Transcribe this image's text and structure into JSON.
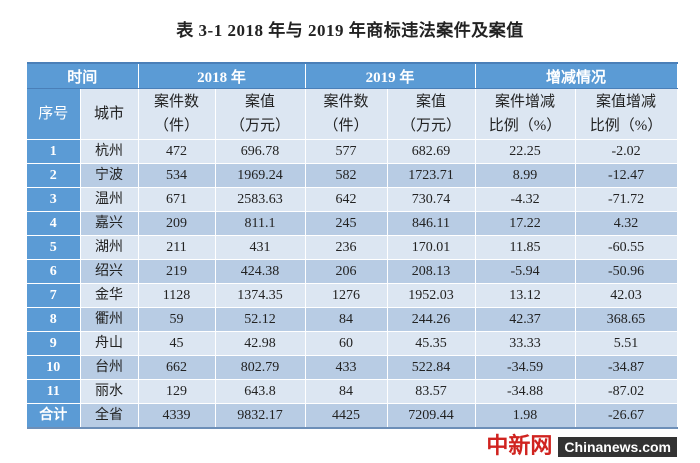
{
  "title": "表 3-1   2018 年与 2019 年商标违法案件及案值",
  "header_row1": [
    "时间",
    "2018 年",
    "2019 年",
    "增减情况"
  ],
  "header_row2": [
    {
      "line1": "序号",
      "line2": ""
    },
    {
      "line1": "城市",
      "line2": ""
    },
    {
      "line1": "案件数",
      "line2": "（件）"
    },
    {
      "line1": "案值",
      "line2": "（万元）"
    },
    {
      "line1": "案件数",
      "line2": "（件）"
    },
    {
      "line1": "案值",
      "line2": "（万元）"
    },
    {
      "line1": "案件增减",
      "line2": "比例（%）"
    },
    {
      "line1": "案值增减",
      "line2": "比例（%）"
    }
  ],
  "rows": [
    [
      "1",
      "杭州",
      "472",
      "696.78",
      "577",
      "682.69",
      "22.25",
      "-2.02"
    ],
    [
      "2",
      "宁波",
      "534",
      "1969.24",
      "582",
      "1723.71",
      "8.99",
      "-12.47"
    ],
    [
      "3",
      "温州",
      "671",
      "2583.63",
      "642",
      "730.74",
      "-4.32",
      "-71.72"
    ],
    [
      "4",
      "嘉兴",
      "209",
      "811.1",
      "245",
      "846.11",
      "17.22",
      "4.32"
    ],
    [
      "5",
      "湖州",
      "211",
      "431",
      "236",
      "170.01",
      "11.85",
      "-60.55"
    ],
    [
      "6",
      "绍兴",
      "219",
      "424.38",
      "206",
      "208.13",
      "-5.94",
      "-50.96"
    ],
    [
      "7",
      "金华",
      "1128",
      "1374.35",
      "1276",
      "1952.03",
      "13.12",
      "42.03"
    ],
    [
      "8",
      "衢州",
      "59",
      "52.12",
      "84",
      "244.26",
      "42.37",
      "368.65"
    ],
    [
      "9",
      "舟山",
      "45",
      "42.98",
      "60",
      "45.35",
      "33.33",
      "5.51"
    ],
    [
      "10",
      "台州",
      "662",
      "802.79",
      "433",
      "522.84",
      "-34.59",
      "-34.87"
    ],
    [
      "11",
      "丽水",
      "129",
      "643.8",
      "84",
      "83.57",
      "-34.88",
      "-87.02"
    ],
    [
      "合计",
      "全省",
      "4339",
      "9832.17",
      "4425",
      "7209.44",
      "1.98",
      "-26.67"
    ]
  ],
  "watermark": {
    "cn": "中新网",
    "en": "Chinanews.com"
  },
  "colors": {
    "header_blue": "#5b9bd5",
    "row_light": "#dce6f2",
    "row_dark": "#b8cce4",
    "watermark_red": "#d0231f"
  }
}
